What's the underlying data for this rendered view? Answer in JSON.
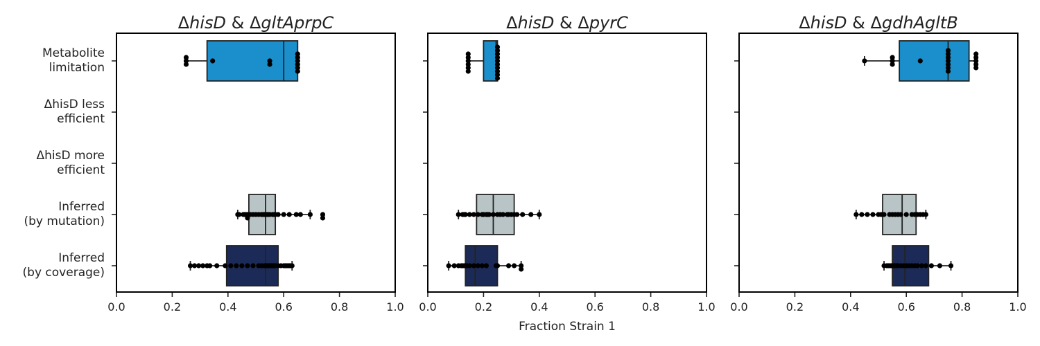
{
  "chart_data": {
    "type": "boxplot",
    "xlabel": "Fraction Strain 1",
    "xlim": [
      0,
      1
    ],
    "x_ticks": [
      "0.0",
      "0.2",
      "0.4",
      "0.6",
      "0.8",
      "1.0"
    ],
    "categories": [
      [
        "Metabolite",
        "limitation"
      ],
      [
        "ΔhisD less",
        "efficient"
      ],
      [
        "ΔhisD more",
        "efficient"
      ],
      [
        "Inferred",
        "(by mutation)"
      ],
      [
        "Inferred",
        "(by coverage)"
      ]
    ],
    "category_colors": [
      "#1b8fcc",
      "#1b8fcc",
      "#1b8fcc",
      "#b8c4c6",
      "#1c2a57"
    ],
    "panels": [
      {
        "title": {
          "prefix": "Δ",
          "first": "hisD",
          "sep": " & Δ",
          "second": "gltAprpC"
        },
        "boxes": [
          {
            "category": 0,
            "min": 0.25,
            "q1": 0.325,
            "median": 0.6,
            "q3": 0.65,
            "max": 0.65,
            "points": [
              0.25,
              0.25,
              0.25,
              0.345,
              0.55,
              0.55,
              0.65,
              0.65,
              0.65,
              0.65,
              0.65,
              0.65
            ]
          },
          {
            "category": 3,
            "min": 0.435,
            "q1": 0.475,
            "median": 0.535,
            "q3": 0.57,
            "max": 0.695,
            "points": [
              0.435,
              0.44,
              0.455,
              0.46,
              0.465,
              0.47,
              0.47,
              0.48,
              0.49,
              0.5,
              0.51,
              0.52,
              0.525,
              0.53,
              0.535,
              0.54,
              0.545,
              0.55,
              0.56,
              0.565,
              0.57,
              0.58,
              0.6,
              0.62,
              0.645,
              0.66,
              0.695,
              0.74,
              0.74
            ]
          },
          {
            "category": 4,
            "min": 0.265,
            "q1": 0.395,
            "median": 0.535,
            "q3": 0.58,
            "max": 0.63,
            "points": [
              0.265,
              0.28,
              0.295,
              0.31,
              0.325,
              0.335,
              0.36,
              0.39,
              0.41,
              0.43,
              0.45,
              0.47,
              0.49,
              0.51,
              0.52,
              0.53,
              0.535,
              0.54,
              0.545,
              0.55,
              0.555,
              0.56,
              0.565,
              0.57,
              0.58,
              0.59,
              0.6,
              0.605,
              0.61,
              0.615,
              0.62,
              0.625,
              0.63
            ]
          }
        ]
      },
      {
        "title": {
          "prefix": "Δ",
          "first": "hisD",
          "sep": " & Δ",
          "second": "pyrC"
        },
        "boxes": [
          {
            "category": 0,
            "min": 0.145,
            "q1": 0.2,
            "median": 0.245,
            "q3": 0.25,
            "max": 0.25,
            "points": [
              0.145,
              0.145,
              0.145,
              0.145,
              0.145,
              0.145,
              0.25,
              0.25,
              0.25,
              0.25,
              0.25,
              0.25,
              0.25,
              0.25,
              0.25,
              0.25
            ]
          },
          {
            "category": 3,
            "min": 0.11,
            "q1": 0.175,
            "median": 0.235,
            "q3": 0.31,
            "max": 0.4,
            "points": [
              0.11,
              0.125,
              0.13,
              0.135,
              0.15,
              0.165,
              0.18,
              0.195,
              0.2,
              0.21,
              0.215,
              0.22,
              0.235,
              0.25,
              0.26,
              0.27,
              0.285,
              0.29,
              0.3,
              0.31,
              0.32,
              0.34,
              0.37,
              0.4
            ]
          },
          {
            "category": 4,
            "min": 0.075,
            "q1": 0.135,
            "median": 0.17,
            "q3": 0.25,
            "max": 0.335,
            "points": [
              0.075,
              0.095,
              0.11,
              0.12,
              0.125,
              0.13,
              0.135,
              0.14,
              0.15,
              0.165,
              0.18,
              0.195,
              0.21,
              0.245,
              0.25,
              0.29,
              0.31,
              0.335,
              0.335
            ]
          }
        ]
      },
      {
        "title": {
          "prefix": "Δ",
          "first": "hisD",
          "sep": " & Δ",
          "second": "gdhAgltB"
        },
        "boxes": [
          {
            "category": 0,
            "min": 0.45,
            "q1": 0.575,
            "median": 0.75,
            "q3": 0.825,
            "max": 0.85,
            "points": [
              0.45,
              0.55,
              0.55,
              0.55,
              0.65,
              0.75,
              0.75,
              0.75,
              0.75,
              0.75,
              0.75,
              0.75,
              0.85,
              0.85,
              0.85,
              0.85,
              0.85
            ]
          },
          {
            "category": 3,
            "min": 0.42,
            "q1": 0.515,
            "median": 0.585,
            "q3": 0.635,
            "max": 0.67,
            "points": [
              0.42,
              0.44,
              0.46,
              0.48,
              0.5,
              0.51,
              0.52,
              0.54,
              0.55,
              0.56,
              0.57,
              0.58,
              0.6,
              0.62,
              0.63,
              0.64,
              0.65,
              0.66,
              0.67
            ]
          },
          {
            "category": 4,
            "min": 0.52,
            "q1": 0.55,
            "median": 0.595,
            "q3": 0.68,
            "max": 0.76,
            "points": [
              0.52,
              0.53,
              0.535,
              0.54,
              0.545,
              0.55,
              0.555,
              0.56,
              0.565,
              0.57,
              0.58,
              0.59,
              0.6,
              0.61,
              0.62,
              0.63,
              0.64,
              0.655,
              0.67,
              0.69,
              0.72,
              0.76
            ]
          }
        ]
      }
    ]
  }
}
